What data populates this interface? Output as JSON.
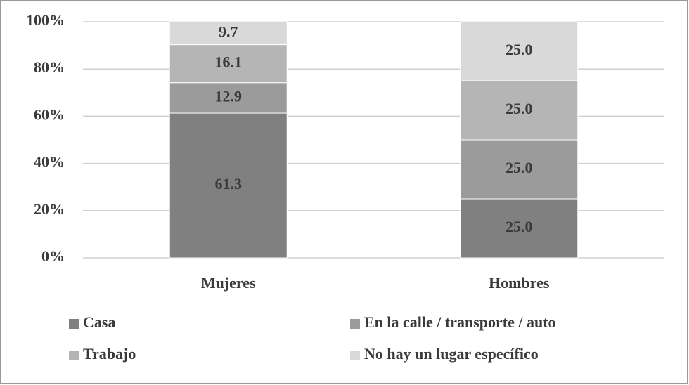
{
  "chart_data": {
    "type": "stacked-bar",
    "categories": [
      "Mujeres",
      "Hombres"
    ],
    "series": [
      {
        "name": "Casa",
        "color": "#808080",
        "values": [
          61.3,
          25
        ],
        "value_labels": [
          "61.3",
          "25.0"
        ]
      },
      {
        "name": "En la calle / transporte / auto",
        "color": "#9b9b9b",
        "values": [
          12.9,
          25
        ],
        "value_labels": [
          "12.9",
          "25.0"
        ]
      },
      {
        "name": "Trabajo",
        "color": "#b5b5b5",
        "values": [
          16.1,
          25
        ],
        "value_labels": [
          "16.1",
          "25.0"
        ]
      },
      {
        "name": "No hay un lugar específico",
        "color": "#d9d9d9",
        "values": [
          9.7,
          25
        ],
        "value_labels": [
          "9.7",
          "25.0"
        ]
      }
    ],
    "ylim": [
      0,
      100
    ],
    "yticks": [
      {
        "value": 0,
        "label": "0%"
      },
      {
        "value": 20,
        "label": "20%"
      },
      {
        "value": 40,
        "label": "40%"
      },
      {
        "value": 60,
        "label": "60%"
      },
      {
        "value": 80,
        "label": "80%"
      },
      {
        "value": 100,
        "label": "100%"
      }
    ],
    "grid": true,
    "legend": "bottom"
  }
}
